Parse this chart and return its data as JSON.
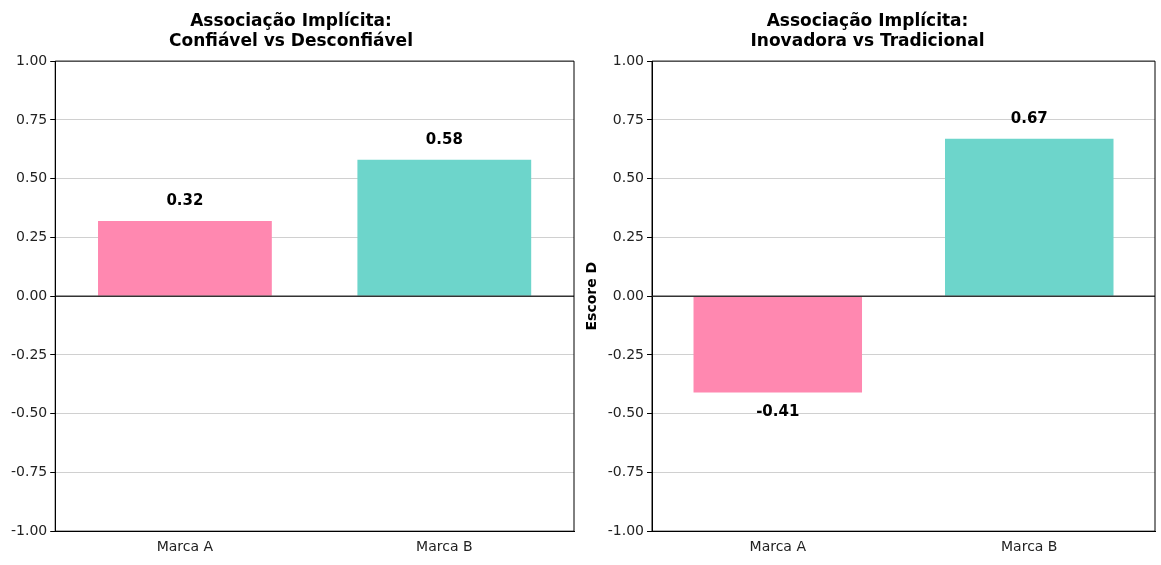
{
  "chart_data": [
    {
      "type": "bar",
      "title": "Associação Implícita:\nConfiável vs Desconfiável",
      "categories": [
        "Marca A",
        "Marca B"
      ],
      "values": [
        0.32,
        0.58
      ],
      "colors": [
        "#ff88b0",
        "#6dd5cb"
      ],
      "ylim": [
        -1,
        1
      ],
      "yticks": [
        {
          "value": -1,
          "label": "-1.00"
        },
        {
          "value": -0.75,
          "label": "-0.75"
        },
        {
          "value": -0.5,
          "label": "-0.50"
        },
        {
          "value": -0.25,
          "label": "-0.25"
        },
        {
          "value": 0,
          "label": "0.00"
        },
        {
          "value": 0.25,
          "label": "0.25"
        },
        {
          "value": 0.5,
          "label": "0.50"
        },
        {
          "value": 0.75,
          "label": "0.75"
        },
        {
          "value": 1,
          "label": "1.00"
        }
      ],
      "grid": "y",
      "data_labels": true,
      "ref_lines": [
        {
          "axis": "y",
          "value": 0,
          "color": "#333333"
        }
      ]
    },
    {
      "type": "bar",
      "title": "Associação Implícita:\nInovadora vs Tradicional",
      "ylabel": "Escore D",
      "categories": [
        "Marca A",
        "Marca B"
      ],
      "values": [
        -0.41,
        0.67
      ],
      "colors": [
        "#ff88b0",
        "#6dd5cb"
      ],
      "ylim": [
        -1,
        1
      ],
      "yticks": [
        {
          "value": -1,
          "label": "-1.00"
        },
        {
          "value": -0.75,
          "label": "-0.75"
        },
        {
          "value": -0.5,
          "label": "-0.50"
        },
        {
          "value": -0.25,
          "label": "-0.25"
        },
        {
          "value": 0,
          "label": "0.00"
        },
        {
          "value": 0.25,
          "label": "0.25"
        },
        {
          "value": 0.5,
          "label": "0.50"
        },
        {
          "value": 0.75,
          "label": "0.75"
        },
        {
          "value": 1,
          "label": "1.00"
        }
      ],
      "grid": "y",
      "data_labels": true,
      "ref_lines": [
        {
          "axis": "y",
          "value": 0,
          "color": "#333333"
        }
      ]
    }
  ]
}
